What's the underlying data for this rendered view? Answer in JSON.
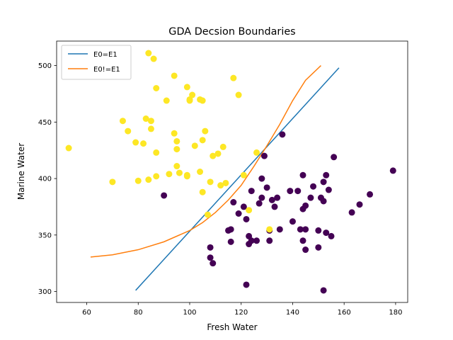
{
  "chart_data": {
    "type": "scatter",
    "title": "GDA Decsion Boundaries",
    "xlabel": "Fresh Water",
    "ylabel": "Marine Water",
    "xlim": [
      48.3,
      184.7
    ],
    "ylim": [
      290.3,
      521.7
    ],
    "xticks": [
      60,
      80,
      100,
      120,
      140,
      160,
      180
    ],
    "yticks": [
      300,
      350,
      400,
      450,
      500
    ],
    "grid": false,
    "legend_position": "upper left",
    "colors": {
      "class0": "#440154",
      "class1": "#fde725",
      "line_e0": "#1f77b4",
      "line_e1": "#ff7f0e"
    },
    "lines": [
      {
        "name": "E0=E1",
        "color": "#1f77b4",
        "x": [
          79,
          158
        ],
        "y": [
          301,
          498
        ]
      },
      {
        "name": "E0!=E1",
        "color": "#ff7f0e",
        "x": [
          61.5,
          70,
          80,
          90,
          100,
          105,
          110,
          115,
          120,
          125,
          130,
          135,
          140,
          145,
          151
        ],
        "y": [
          330.5,
          332.5,
          337,
          344,
          354,
          361,
          370,
          381,
          394,
          411,
          429,
          448,
          469,
          487,
          500
        ]
      }
    ],
    "series": [
      {
        "label": "0",
        "color": "#440154",
        "points": [
          [
            90,
            385
          ],
          [
            108,
            339
          ],
          [
            108,
            330
          ],
          [
            109,
            325
          ],
          [
            115,
            354
          ],
          [
            116,
            355
          ],
          [
            116,
            344
          ],
          [
            117,
            379
          ],
          [
            119,
            369
          ],
          [
            121,
            375
          ],
          [
            122,
            364
          ],
          [
            122,
            306
          ],
          [
            123,
            349
          ],
          [
            123,
            342
          ],
          [
            124,
            345
          ],
          [
            124,
            389
          ],
          [
            126,
            345
          ],
          [
            127,
            378
          ],
          [
            128,
            400
          ],
          [
            128,
            383
          ],
          [
            130,
            392
          ],
          [
            131,
            345
          ],
          [
            131,
            354
          ],
          [
            132,
            381
          ],
          [
            133,
            375
          ],
          [
            134,
            383
          ],
          [
            135,
            355
          ],
          [
            136,
            439
          ],
          [
            139,
            389
          ],
          [
            140,
            362
          ],
          [
            142,
            389
          ],
          [
            143,
            355
          ],
          [
            144,
            403
          ],
          [
            144,
            373
          ],
          [
            144,
            345
          ],
          [
            145,
            376
          ],
          [
            145,
            355
          ],
          [
            145,
            337
          ],
          [
            147,
            383
          ],
          [
            148,
            393
          ],
          [
            150,
            354
          ],
          [
            150,
            339
          ],
          [
            151,
            383
          ],
          [
            152,
            301
          ],
          [
            152,
            380
          ],
          [
            152,
            397
          ],
          [
            153,
            403
          ],
          [
            153,
            352
          ],
          [
            154,
            390
          ],
          [
            155,
            349
          ],
          [
            156,
            419
          ],
          [
            163,
            370
          ],
          [
            166,
            377
          ],
          [
            170,
            386
          ],
          [
            179,
            407
          ],
          [
            129,
            420
          ]
        ]
      },
      {
        "label": "1",
        "color": "#fde725",
        "points": [
          [
            53,
            427
          ],
          [
            70,
            397
          ],
          [
            74,
            451
          ],
          [
            76,
            442
          ],
          [
            79,
            432
          ],
          [
            80,
            398
          ],
          [
            82,
            431
          ],
          [
            83,
            453
          ],
          [
            84,
            511
          ],
          [
            84,
            399
          ],
          [
            85,
            451
          ],
          [
            85,
            444
          ],
          [
            86,
            506
          ],
          [
            87,
            480
          ],
          [
            87,
            423
          ],
          [
            87,
            402
          ],
          [
            91,
            469
          ],
          [
            92,
            404
          ],
          [
            94,
            491
          ],
          [
            94,
            440
          ],
          [
            95,
            433
          ],
          [
            95,
            426
          ],
          [
            95,
            411
          ],
          [
            96,
            405
          ],
          [
            99,
            481
          ],
          [
            99,
            403
          ],
          [
            99,
            402
          ],
          [
            100,
            470
          ],
          [
            100,
            469
          ],
          [
            101,
            474
          ],
          [
            102,
            429
          ],
          [
            104,
            406
          ],
          [
            104,
            470
          ],
          [
            105,
            469
          ],
          [
            105,
            434
          ],
          [
            105,
            388
          ],
          [
            106,
            442
          ],
          [
            107,
            368
          ],
          [
            108,
            397
          ],
          [
            109,
            420
          ],
          [
            111,
            422
          ],
          [
            112,
            394
          ],
          [
            113,
            428
          ],
          [
            114,
            396
          ],
          [
            117,
            489
          ],
          [
            119,
            474
          ],
          [
            121,
            403
          ],
          [
            123,
            372
          ],
          [
            126,
            423
          ],
          [
            131,
            355
          ]
        ]
      }
    ]
  }
}
